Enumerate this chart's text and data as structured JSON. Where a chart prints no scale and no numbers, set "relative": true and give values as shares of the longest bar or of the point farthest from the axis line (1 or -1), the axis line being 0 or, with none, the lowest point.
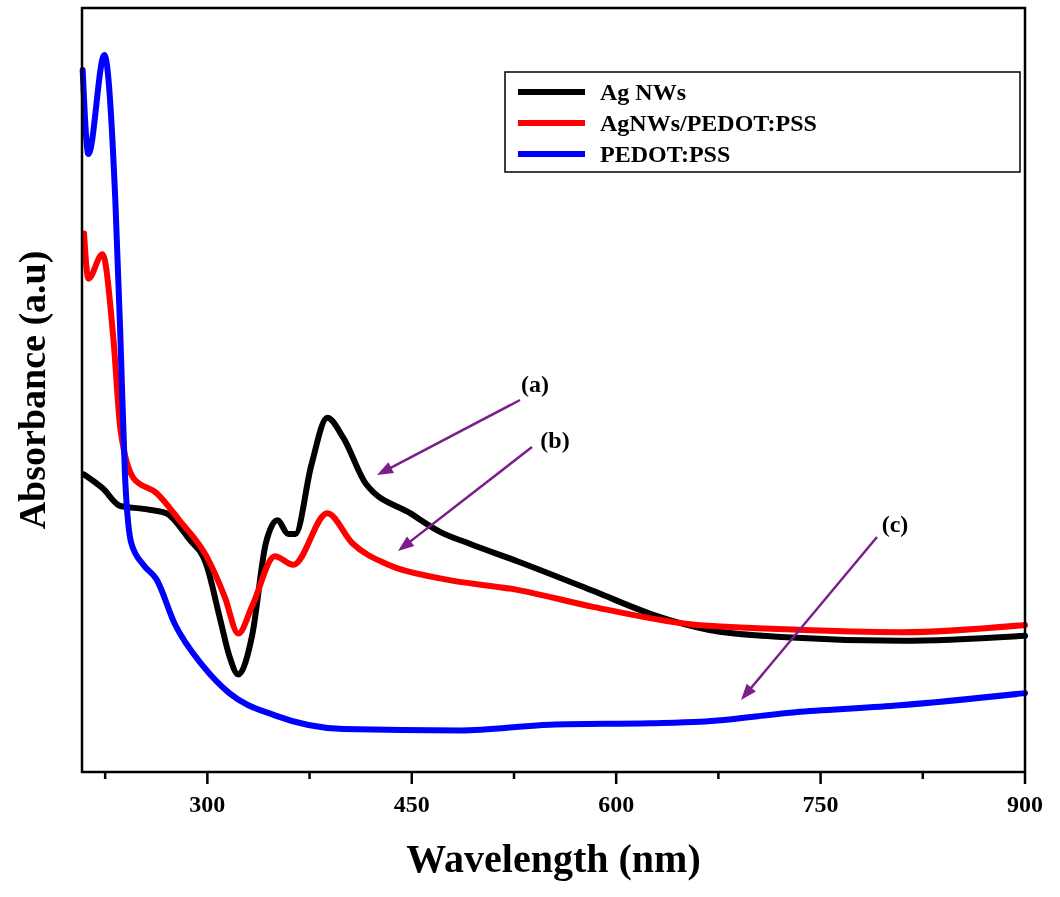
{
  "chart_data": {
    "type": "line",
    "relative": true,
    "xlabel": "Wavelength (nm)",
    "ylabel": "Absorbance (a.u)",
    "xlim": [
      208,
      900
    ],
    "xticks": [
      {
        "value": 225,
        "label": null
      },
      300,
      {
        "value": 375,
        "label": null
      },
      450,
      {
        "value": 525,
        "label": null
      },
      600,
      {
        "value": 675,
        "label": null
      },
      750,
      {
        "value": 825,
        "label": null
      },
      900
    ],
    "legend": "top right",
    "tick_labels": "x",
    "line_style": "solid",
    "series": [
      {
        "name": "Ag NWs",
        "color": "#000000",
        "x": [
          209.5,
          223,
          236.2,
          253,
          269.6,
          286.1,
          299.3,
          309.5,
          316.1,
          322.7,
          333,
          342.9,
          351.4,
          359.4,
          364.6,
          376.3,
          388,
          399.8,
          416.3,
          449.7,
          470.8,
          493,
          527.4,
          583.9,
          626.1,
          668.3,
          724.8,
          809.5,
          900
        ],
        "values": [
          0.415,
          0.396,
          0.371,
          0.367,
          0.361,
          0.326,
          0.289,
          0.212,
          0.162,
          0.136,
          0.192,
          0.319,
          0.351,
          0.332,
          0.332,
          0.428,
          0.494,
          0.466,
          0.402,
          0.36,
          0.335,
          0.318,
          0.294,
          0.252,
          0.22,
          0.198,
          0.188,
          0.183,
          0.19
        ]
      },
      {
        "name": "AgNWs/PEDOT:PSS",
        "color": "#ff0000",
        "x": [
          209.5,
          212.7,
          223,
          231,
          236.2,
          246.1,
          262.6,
          279.5,
          299.3,
          312.8,
          322.7,
          333,
          349.5,
          363.1,
          388,
          406.4,
          432.8,
          470.8,
          527.4,
          583.9,
          654.4,
          724.8,
          809.5,
          900
        ],
        "values": [
          0.751,
          0.688,
          0.722,
          0.605,
          0.478,
          0.409,
          0.389,
          0.351,
          0.301,
          0.244,
          0.193,
          0.232,
          0.301,
          0.289,
          0.361,
          0.319,
          0.289,
          0.27,
          0.254,
          0.23,
          0.206,
          0.199,
          0.195,
          0.205
        ]
      },
      {
        "name": "PEDOT:PSS",
        "color": "#0000ff",
        "x": [
          208.5,
          212.7,
          224.4,
          232.5,
          236.2,
          239.5,
          244.2,
          253,
          262.6,
          276.2,
          296.3,
          316.1,
          349.5,
          399.8,
          485.6,
          551.7,
          625,
          661.7,
          735,
          808.4,
          900
        ],
        "values": [
          0.979,
          0.862,
          1,
          0.795,
          0.605,
          0.416,
          0.319,
          0.289,
          0.269,
          0.206,
          0.149,
          0.11,
          0.079,
          0.06,
          0.058,
          0.066,
          0.068,
          0.07,
          0.084,
          0.093,
          0.11
        ]
      }
    ],
    "annotations": [
      "(a)",
      "(b)",
      "(c)"
    ]
  }
}
